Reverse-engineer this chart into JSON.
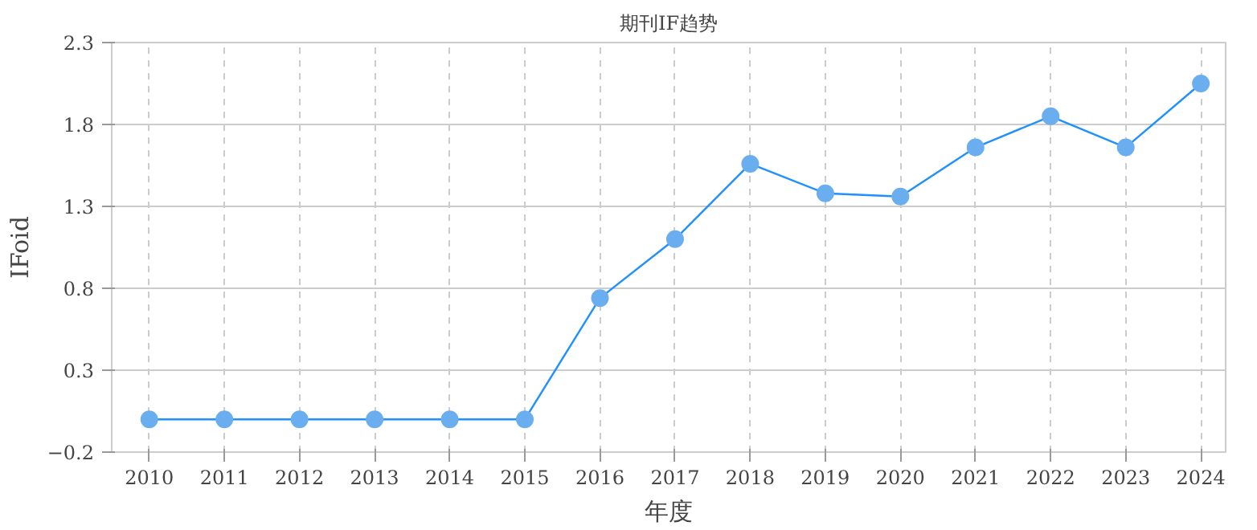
{
  "chart_data": {
    "type": "line",
    "title": "期刊IF趋势",
    "xlabel": "年度",
    "ylabel": "IFoid",
    "x": [
      2010,
      2011,
      2012,
      2013,
      2014,
      2015,
      2016,
      2017,
      2018,
      2019,
      2020,
      2021,
      2022,
      2023,
      2024
    ],
    "series": [
      {
        "color": "#1e90ff",
        "values": [
          0,
          0,
          0,
          0,
          0,
          0,
          0.74,
          1.1,
          1.56,
          1.38,
          1.36,
          1.66,
          1.85,
          1.66,
          2.05
        ]
      }
    ],
    "xlim": [
      2009.5,
      2024.33
    ],
    "xticks": [
      2010,
      2011,
      2012,
      2013,
      2014,
      2015,
      2016,
      2017,
      2018,
      2019,
      2020,
      2021,
      2022,
      2023,
      2024
    ],
    "ylim": [
      -0.2,
      2.3
    ],
    "yticks": [
      -0.2,
      0.3,
      0.8,
      1.3,
      1.8,
      2.3
    ],
    "grid": true,
    "marker": "circle",
    "line_style": "solid"
  }
}
